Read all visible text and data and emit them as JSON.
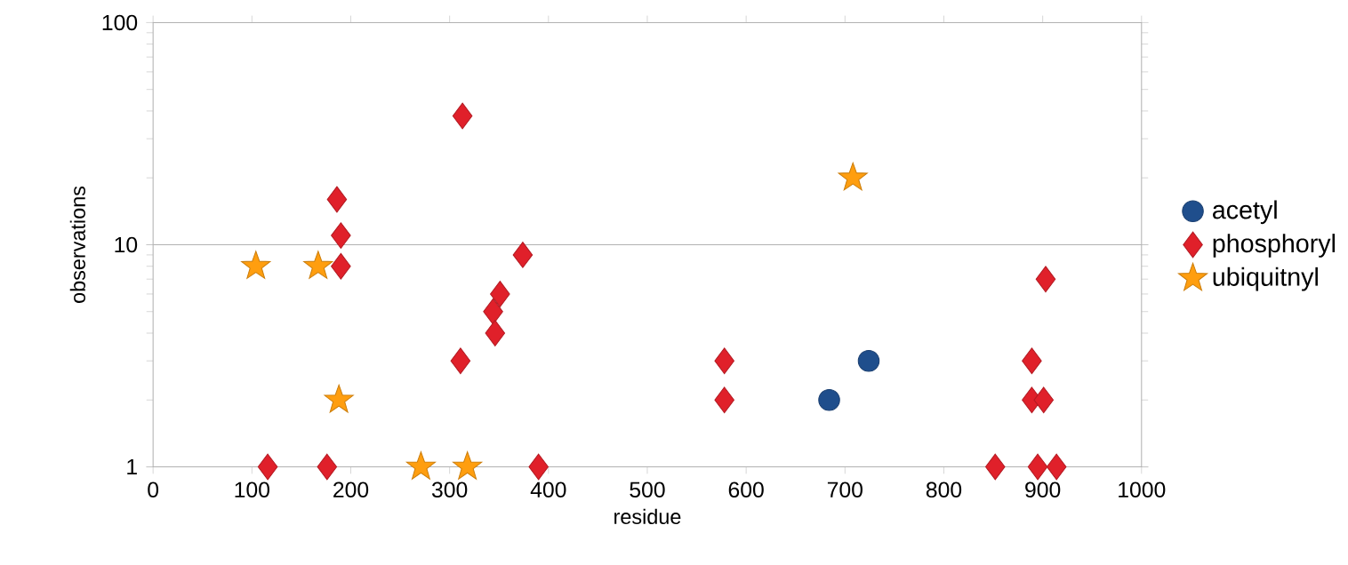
{
  "chart_data": {
    "type": "scatter",
    "xlabel": "residue",
    "ylabel": "observations",
    "log": "y",
    "grid": "y",
    "legend": "right",
    "xlim": [
      0,
      1000
    ],
    "ylim": [
      1,
      100
    ],
    "xticks": [
      0,
      100,
      200,
      300,
      400,
      500,
      600,
      700,
      800,
      900,
      1000
    ],
    "yticks": [
      1,
      10,
      100
    ],
    "series": [
      {
        "name": "acetyl",
        "color": "#1f4e8c",
        "marker": "circle",
        "x": [
          684,
          724
        ],
        "values": [
          2,
          3
        ]
      },
      {
        "name": "phosphoryl",
        "color": "#e0202a",
        "marker": "diamond",
        "x": [
          116,
          176,
          186,
          190,
          190,
          313,
          311,
          344,
          346,
          351,
          374,
          390,
          578,
          578,
          852,
          889,
          889,
          901,
          895,
          914,
          903
        ],
        "values": [
          1,
          1,
          16,
          11,
          8,
          38,
          3,
          5,
          4,
          6,
          9,
          1,
          3,
          2,
          1,
          3,
          2,
          2,
          1,
          1,
          7
        ]
      },
      {
        "name": "ubiquitnyl",
        "color": "#ff9e0f",
        "marker": "star",
        "x": [
          104,
          167,
          188,
          271,
          318,
          708
        ],
        "values": [
          8,
          8,
          2,
          1,
          1,
          20
        ]
      }
    ]
  }
}
